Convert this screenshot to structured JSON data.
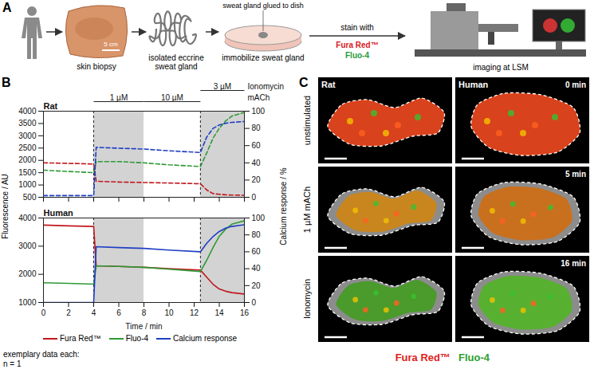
{
  "chart_data": [
    {
      "type": "line",
      "title": "Rat",
      "x": [
        0,
        2,
        4,
        4.2,
        6,
        8,
        10,
        12.5,
        13,
        13.5,
        14,
        14.5,
        15,
        16
      ],
      "series": [
        {
          "name": "Fura Red™",
          "color": "#c0181e",
          "line_style": "dashed",
          "values": [
            1900,
            1880,
            1850,
            1150,
            1120,
            1100,
            1080,
            1050,
            800,
            650,
            620,
            600,
            590,
            580
          ]
        },
        {
          "name": "Fluo-4",
          "color": "#2e9a36",
          "line_style": "dashed",
          "values": [
            1600,
            1550,
            1500,
            1950,
            1950,
            1900,
            1820,
            1750,
            2300,
            2900,
            3300,
            3600,
            3800,
            3950
          ]
        },
        {
          "name": "Calcium response",
          "color": "#1f3fc4",
          "line_style": "dashed",
          "axis": "y2",
          "values": [
            2,
            2,
            2,
            58,
            57,
            56,
            54,
            52,
            70,
            80,
            84,
            86,
            87,
            88
          ]
        }
      ],
      "xlim": [
        0,
        16
      ],
      "xticks": [
        0,
        2,
        4,
        6,
        8,
        10,
        12,
        14,
        16
      ],
      "ylim": [
        500,
        4000
      ],
      "yticks": [
        500,
        1000,
        1500,
        2000,
        2500,
        3000,
        3500,
        4000
      ],
      "y2lim": [
        0,
        100
      ],
      "y2ticks": [
        0,
        20,
        40,
        60,
        80,
        100
      ],
      "tick_labels": "y"
    },
    {
      "type": "line",
      "title": "Human",
      "x_label": "Time / min",
      "legend": "bottom",
      "x": [
        0,
        2,
        4,
        4.2,
        6,
        8,
        10,
        12.5,
        13,
        13.5,
        14,
        14.5,
        15,
        16
      ],
      "series": [
        {
          "name": "Fura Red™",
          "color": "#c0181e",
          "line_style": "solid",
          "values": [
            3750,
            3720,
            3700,
            2300,
            2280,
            2250,
            2200,
            2150,
            1900,
            1650,
            1480,
            1400,
            1350,
            1300
          ]
        },
        {
          "name": "Fluo-4",
          "color": "#2e9a36",
          "line_style": "solid",
          "values": [
            1700,
            1680,
            1650,
            2300,
            2280,
            2250,
            2180,
            2100,
            2500,
            2950,
            3350,
            3600,
            3780,
            3900
          ]
        },
        {
          "name": "Calcium response",
          "color": "#1f3fc4",
          "line_style": "solid",
          "axis": "y2",
          "values": [
            0,
            0,
            0,
            66,
            65,
            64,
            62,
            60,
            70,
            78,
            84,
            88,
            90,
            92
          ]
        }
      ],
      "xlim": [
        0,
        16
      ],
      "xticks": [
        0,
        2,
        4,
        6,
        8,
        10,
        12,
        14,
        16
      ],
      "ylim": [
        1000,
        4000
      ],
      "yticks": [
        1000,
        2000,
        3000,
        4000
      ],
      "y2lim": [
        0,
        100
      ],
      "y2ticks": [
        0,
        20,
        40,
        60,
        80,
        100
      ]
    }
  ],
  "panel_A": {
    "letter": "A",
    "skin_label": "skin biopsy",
    "scale_bar": "5 cm",
    "gland_label": "isolated eccrine sweat gland",
    "dish_note": "sweat gland glued to dish",
    "dish_label": "immobilize sweat gland",
    "arrow_label": "stain with",
    "stains": [
      {
        "name": "Fura Red™",
        "color": "#d7191c"
      },
      {
        "name": "Fluo-4",
        "color": "#1f9a3a"
      }
    ],
    "imaging_label": "imaging at LSM"
  },
  "panel_B": {
    "letter": "B",
    "y_label": "Fluorescence / AU",
    "y2_label": "Calcium response / %",
    "note": "exemplary data each: n = 1",
    "agents": [
      "Ionomycin",
      "mACh"
    ],
    "treatments": [
      {
        "label": "3 µM",
        "agent": "Ionomycin",
        "start": 12.5,
        "end": 16
      },
      {
        "label": "1 µM",
        "agent": "mACh",
        "start": 4,
        "end": 8
      },
      {
        "label": "10 µM",
        "agent": "mACh",
        "start": 8,
        "end": 12.5
      }
    ],
    "shaded": [
      [
        4,
        8
      ],
      [
        12.5,
        16
      ]
    ]
  },
  "panel_C": {
    "letter": "C",
    "columns": [
      "Rat",
      "Human"
    ],
    "rows": [
      "unstimulated",
      "1 µM mACh",
      "Ionomycin"
    ],
    "times": [
      "0 min",
      "5 min",
      "16 min"
    ],
    "channels": [
      {
        "name": "Fura Red™",
        "color": "#e0201b"
      },
      {
        "name": "Fluo-4",
        "color": "#2ca02c"
      }
    ]
  }
}
